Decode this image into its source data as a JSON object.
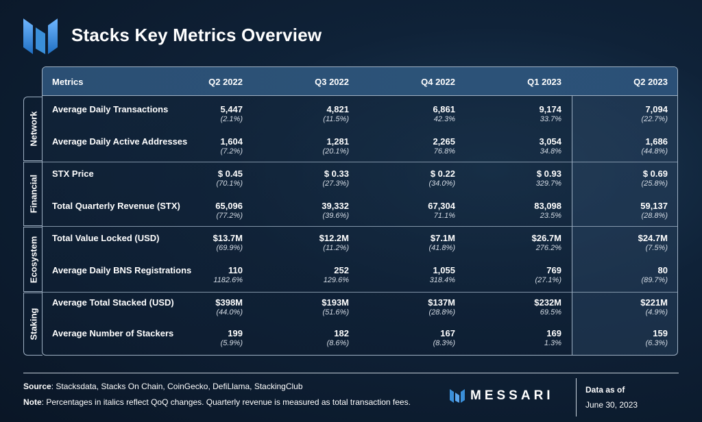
{
  "title": "Stacks Key Metrics Overview",
  "colors": {
    "background": "#0f2238",
    "header": "#2b4f74",
    "border": "#9fb1c4",
    "logo_blue": "#3a8fd9"
  },
  "header": {
    "metrics": "Metrics",
    "quarters": [
      "Q2 2022",
      "Q3 2022",
      "Q4 2022",
      "Q1 2023",
      "Q2 2023"
    ]
  },
  "sections": [
    {
      "name": "Network",
      "rows": [
        {
          "metric": "Average Daily Transactions",
          "values": [
            "5,447",
            "4,821",
            "6,861",
            "9,174",
            "7,094"
          ],
          "changes": [
            "(2.1%)",
            "(11.5%)",
            "42.3%",
            "33.7%",
            "(22.7%)"
          ]
        },
        {
          "metric": "Average Daily Active Addresses",
          "values": [
            "1,604",
            "1,281",
            "2,265",
            "3,054",
            "1,686"
          ],
          "changes": [
            "(7.2%)",
            "(20.1%)",
            "76.8%",
            "34.8%",
            "(44.8%)"
          ]
        }
      ]
    },
    {
      "name": "Financial",
      "rows": [
        {
          "metric": "STX Price",
          "values": [
            "$ 0.45",
            "$ 0.33",
            "$ 0.22",
            "$ 0.93",
            "$ 0.69"
          ],
          "changes": [
            "(70.1%)",
            "(27.3%)",
            "(34.0%)",
            "329.7%",
            "(25.8%)"
          ]
        },
        {
          "metric": "Total Quarterly Revenue (STX)",
          "values": [
            "65,096",
            "39,332",
            "67,304",
            "83,098",
            "59,137"
          ],
          "changes": [
            "(77.2%)",
            "(39.6%)",
            "71.1%",
            "23.5%",
            "(28.8%)"
          ]
        }
      ]
    },
    {
      "name": "Ecosystem",
      "rows": [
        {
          "metric": "Total Value Locked (USD)",
          "values": [
            "$13.7M",
            "$12.2M",
            "$7.1M",
            "$26.7M",
            "$24.7M"
          ],
          "changes": [
            "(69.9%)",
            "(11.2%)",
            "(41.8%)",
            "276.2%",
            "(7.5%)"
          ]
        },
        {
          "metric": "Average Daily BNS Registrations",
          "values": [
            "110",
            "252",
            "1,055",
            "769",
            "80"
          ],
          "changes": [
            "1182.6%",
            "129.6%",
            "318.4%",
            "(27.1%)",
            "(89.7%)"
          ]
        }
      ]
    },
    {
      "name": "Staking",
      "rows": [
        {
          "metric": "Average Total Stacked (USD)",
          "values": [
            "$398M",
            "$193M",
            "$137M",
            "$232M",
            "$221M"
          ],
          "changes": [
            "(44.0%)",
            "(51.6%)",
            "(28.8%)",
            "69.5%",
            "(4.9%)"
          ]
        },
        {
          "metric": "Average Number of Stackers",
          "values": [
            "199",
            "182",
            "167",
            "169",
            "159"
          ],
          "changes": [
            "(5.9%)",
            "(8.6%)",
            "(8.3%)",
            "1.3%",
            "(6.3%)"
          ]
        }
      ]
    }
  ],
  "footer": {
    "source_label": "Source",
    "source_text": ": Stacksdata, Stacks On Chain, CoinGecko, DefiLlama, StackingClub",
    "note_label": "Note",
    "note_text": ": Percentages in italics reflect QoQ changes. Quarterly revenue is measured as total transaction fees.",
    "brand": "MESSARI",
    "as_of_label": "Data as of",
    "as_of_date": "June 30, 2023"
  }
}
